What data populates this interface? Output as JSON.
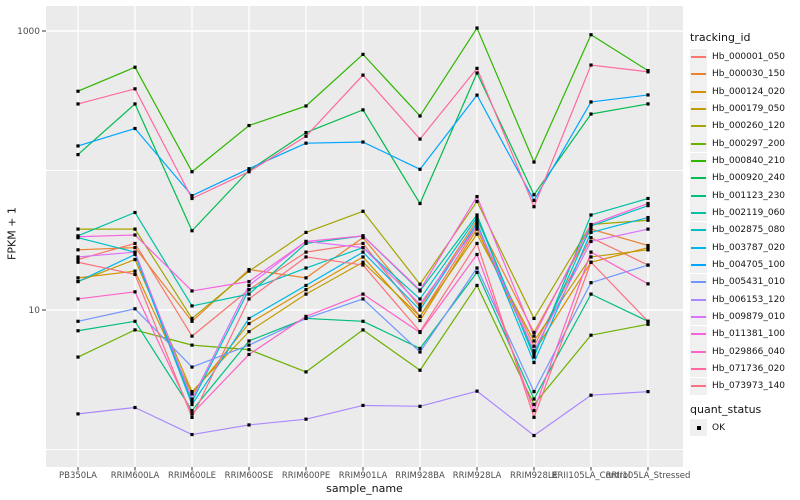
{
  "chart_data": {
    "type": "line",
    "title": "",
    "xlabel": "sample_name",
    "ylabel": "FPKM + 1",
    "y_scale": "log10",
    "y_ticks": [
      {
        "label": "1000",
        "value": 1000
      },
      {
        "label": "10",
        "value": 10
      }
    ],
    "y_gridlines_major": [
      1000,
      10
    ],
    "y_gridlines_minor": [
      100,
      1
    ],
    "grid": true,
    "legend_position": "right",
    "panel_bg": "#EBEBEB",
    "gridline_color": "#FFFFFF",
    "point_color": "#000000",
    "axis_text_color": "#4D4D4D",
    "categories": [
      "PB350LA",
      "RRIM600LA",
      "RRIM600LE",
      "RRIM600SE",
      "RRIM600PE",
      "RRIM901LA",
      "RRIM928BA",
      "RRIM928LA",
      "RRIM928LE",
      "RRII105LA_Control",
      "RRII105LA_Stressed"
    ],
    "series": [
      {
        "name": "Hb_000001_050",
        "color": "#F8766D",
        "values": [
          23,
          30,
          6.5,
          14,
          26,
          30,
          9,
          40,
          5.5,
          33,
          21
        ]
      },
      {
        "name": "Hb_000030_150",
        "color": "#EA8331",
        "values": [
          27,
          28,
          8.3,
          19.5,
          17,
          33,
          10.5,
          44,
          6.9,
          38,
          29
        ]
      },
      {
        "name": "Hb_000124_020",
        "color": "#D89000",
        "values": [
          17,
          19,
          2.5,
          8,
          14,
          24,
          8.4,
          38,
          5,
          22,
          28
        ]
      },
      {
        "name": "Hb_000179_050",
        "color": "#C09B00",
        "values": [
          16,
          23,
          2.6,
          7,
          13,
          22,
          9,
          35,
          6,
          24,
          27
        ]
      },
      {
        "name": "Hb_000260_120",
        "color": "#A3A500",
        "values": [
          38,
          38,
          8.7,
          19,
          36,
          51,
          15.3,
          60,
          8.7,
          41,
          44
        ]
      },
      {
        "name": "Hb_000297_200",
        "color": "#6BB100",
        "values": [
          4.6,
          7.2,
          5.6,
          5.2,
          3.6,
          7.2,
          3.7,
          15,
          2.1,
          6.6,
          7.9
        ]
      },
      {
        "name": "Hb_000840_210",
        "color": "#2FB600",
        "values": [
          370,
          550,
          98,
          210,
          290,
          680,
          246,
          1050,
          115,
          940,
          520
        ]
      },
      {
        "name": "Hb_000920_240",
        "color": "#00BB4E",
        "values": [
          130,
          300,
          37,
          100,
          187,
          272,
          58,
          500,
          67,
          254,
          300
        ]
      },
      {
        "name": "Hb_001123_230",
        "color": "#00BE7D",
        "values": [
          7.1,
          8.3,
          1.9,
          6,
          8.7,
          8.3,
          5.3,
          18.6,
          2.3,
          13,
          8.3
        ]
      },
      {
        "name": "Hb_002119_060",
        "color": "#00C1A2",
        "values": [
          34,
          50,
          10.7,
          13,
          30,
          34,
          13.7,
          48,
          4.6,
          48,
          63
        ]
      },
      {
        "name": "Hb_002875_080",
        "color": "#00BFC4",
        "values": [
          33,
          26,
          2.2,
          14,
          20,
          28,
          12,
          46,
          4.8,
          40,
          56
        ]
      },
      {
        "name": "Hb_003787_020",
        "color": "#00B8E5",
        "values": [
          16,
          25,
          2.1,
          8.7,
          15,
          26,
          10,
          42,
          4.2,
          36,
          46
        ]
      },
      {
        "name": "Hb_004705_100",
        "color": "#00A5FF",
        "values": [
          150,
          200,
          66,
          103,
          157,
          160,
          102,
          347,
          61,
          310,
          348
        ]
      },
      {
        "name": "Hb_005431_010",
        "color": "#7097FF",
        "values": [
          8.3,
          10.2,
          3.9,
          5.6,
          8.7,
          12,
          5,
          20,
          2.6,
          15.7,
          21
        ]
      },
      {
        "name": "Hb_006153_120",
        "color": "#AC88FF",
        "values": [
          1.8,
          2.0,
          1.28,
          1.5,
          1.65,
          2.07,
          2.04,
          2.62,
          1.26,
          2.45,
          2.6
        ]
      },
      {
        "name": "Hb_009879_010",
        "color": "#DC71FA",
        "values": [
          24,
          26,
          2.3,
          15,
          31,
          28,
          11,
          40,
          5.1,
          31,
          38
        ]
      },
      {
        "name": "Hb_011381_100",
        "color": "#F763DF",
        "values": [
          33.5,
          34.5,
          13.7,
          16,
          31,
          34,
          13.9,
          65,
          6.5,
          41,
          58
        ]
      },
      {
        "name": "Hb_029866_040",
        "color": "#FF61C7",
        "values": [
          12,
          13.5,
          1.8,
          4.8,
          9,
          13,
          6.9,
          25,
          1.9,
          26,
          15.4
        ]
      },
      {
        "name": "Hb_071736_020",
        "color": "#FF68A1",
        "values": [
          300,
          385,
          63,
          98,
          176,
          483,
          168,
          540,
          55,
          570,
          510
        ]
      },
      {
        "name": "Hb_073973_140",
        "color": "#FC717F",
        "values": [
          22,
          18,
          1.7,
          12,
          24,
          21,
          7,
          30,
          1.7,
          22,
          8.3
        ]
      }
    ],
    "legend": {
      "series_title": "tracking_id",
      "status_title": "quant_status",
      "status_items": [
        {
          "label": "OK",
          "marker_icon": "black-square"
        }
      ]
    }
  }
}
